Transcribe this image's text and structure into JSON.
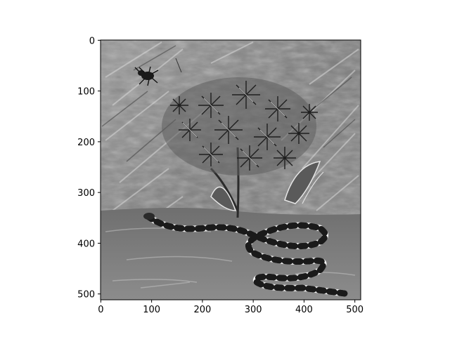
{
  "figure": {
    "type": "image",
    "description_visible": false,
    "colormap": "gray",
    "image_extent": {
      "width": 512,
      "height": 512
    },
    "x_axis": {
      "ticks": [
        {
          "value": 0,
          "label": "0"
        },
        {
          "value": 100,
          "label": "100"
        },
        {
          "value": 200,
          "label": "200"
        },
        {
          "value": 300,
          "label": "300"
        },
        {
          "value": 400,
          "label": "400"
        },
        {
          "value": 500,
          "label": "500"
        }
      ]
    },
    "y_axis": {
      "ticks": [
        {
          "value": 0,
          "label": "0"
        },
        {
          "value": 100,
          "label": "100"
        },
        {
          "value": 200,
          "label": "200"
        },
        {
          "value": 300,
          "label": "300"
        },
        {
          "value": 400,
          "label": "400"
        },
        {
          "value": 500,
          "label": "500"
        }
      ]
    }
  }
}
